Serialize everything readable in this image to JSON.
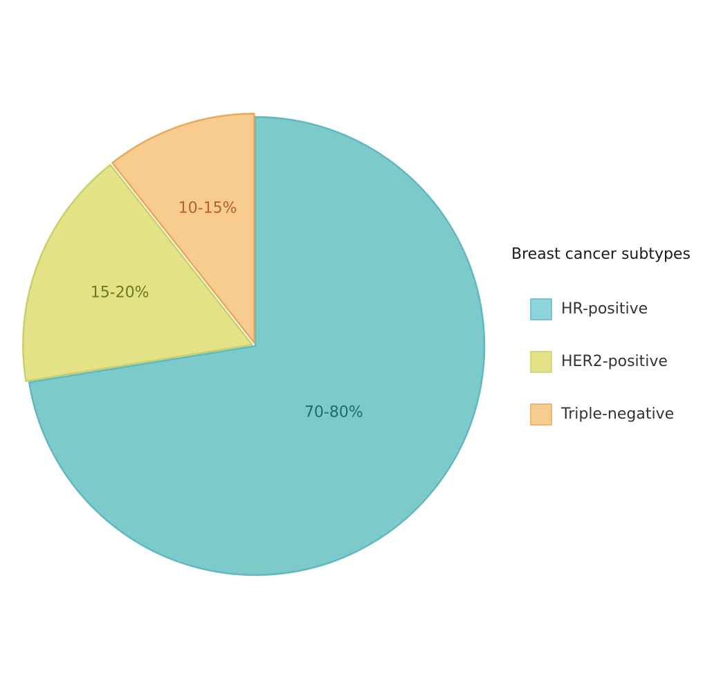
{
  "chart_data": {
    "type": "pie",
    "title": "",
    "legend_title": "Breast cancer subtypes",
    "legend_position": "right",
    "start_angle_deg": 0,
    "direction": "clockwise",
    "slices": [
      {
        "name": "HR-positive",
        "label": "70-80%",
        "value": 75,
        "fill": "#7ccaca",
        "stroke": "#5fb8c2",
        "label_color": "#1f6b6b",
        "exploded": false
      },
      {
        "name": "HER2-positive",
        "label": "15-20%",
        "value": 17.5,
        "fill": "#e4e287",
        "stroke": "#c9cf6a",
        "label_color": "#6b7a1a",
        "exploded": true
      },
      {
        "name": "Triple-negative",
        "label": "10-15%",
        "value": 11,
        "fill": "#f8cb8e",
        "stroke": "#e8a95a",
        "label_color": "#b8621f",
        "exploded": true
      }
    ],
    "legend_swatches": [
      {
        "name": "HR-positive",
        "fill": "#8fd3dc",
        "stroke": "#5fb8c2"
      },
      {
        "name": "HER2-positive",
        "fill": "#e4e287",
        "stroke": "#c9cf6a"
      },
      {
        "name": "Triple-negative",
        "fill": "#f8cb8e",
        "stroke": "#e8a95a"
      }
    ]
  }
}
